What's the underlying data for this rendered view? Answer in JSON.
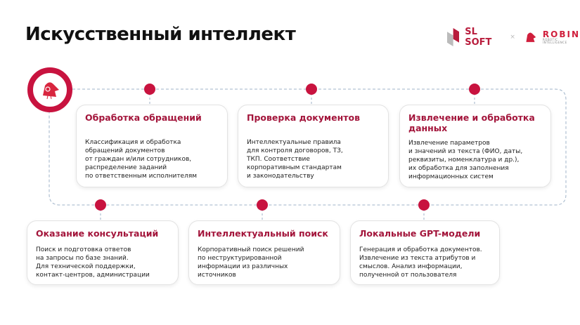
{
  "title": "Искусственный интеллект",
  "logos": {
    "sl_soft": "SL SOFT",
    "separator": "×",
    "robin": "ROBIN",
    "robin_sub": "ROBOTIC INTELLIGENCE"
  },
  "colors": {
    "accent": "#c8133f",
    "heading": "#a3153b",
    "path": "#9fb3c8"
  },
  "cards": [
    {
      "title": "Обработка обращений",
      "text": "Классификация и обработка\nобращений документов\nот граждан и/или сотрудников,\nраспределение заданий\nпо ответственным исполнителям"
    },
    {
      "title": "Проверка документов",
      "text": "Интеллектуальные правила\nдля контроля договоров, ТЗ,\nТКП. Соответствие\nкорпоративным стандартам\nи законодательству"
    },
    {
      "title": "Извлечение и обработка данных",
      "text": "Извлечение параметров\nи значений из текста (ФИО, даты,\nреквизиты, номенклатура и др.),\nих обработка для заполнения\nинформационных систем"
    },
    {
      "title": "Оказание консультаций",
      "text": "Поиск и подготовка ответов\nна запросы по базе знаний.\nДля технической поддержки,\nконтакт-центров, администрации"
    },
    {
      "title": "Интеллектуальный поиск",
      "text": "Корпоративный поиск решений\nпо неструктурированной\nинформации из различных\nисточников"
    },
    {
      "title": "Локальные GPT-модели",
      "text": "Генерация и обработка документов.\nИзвлечение из текста атрибутов и\nсмыслов. Анализ информации,\nполученной от пользователя"
    }
  ]
}
